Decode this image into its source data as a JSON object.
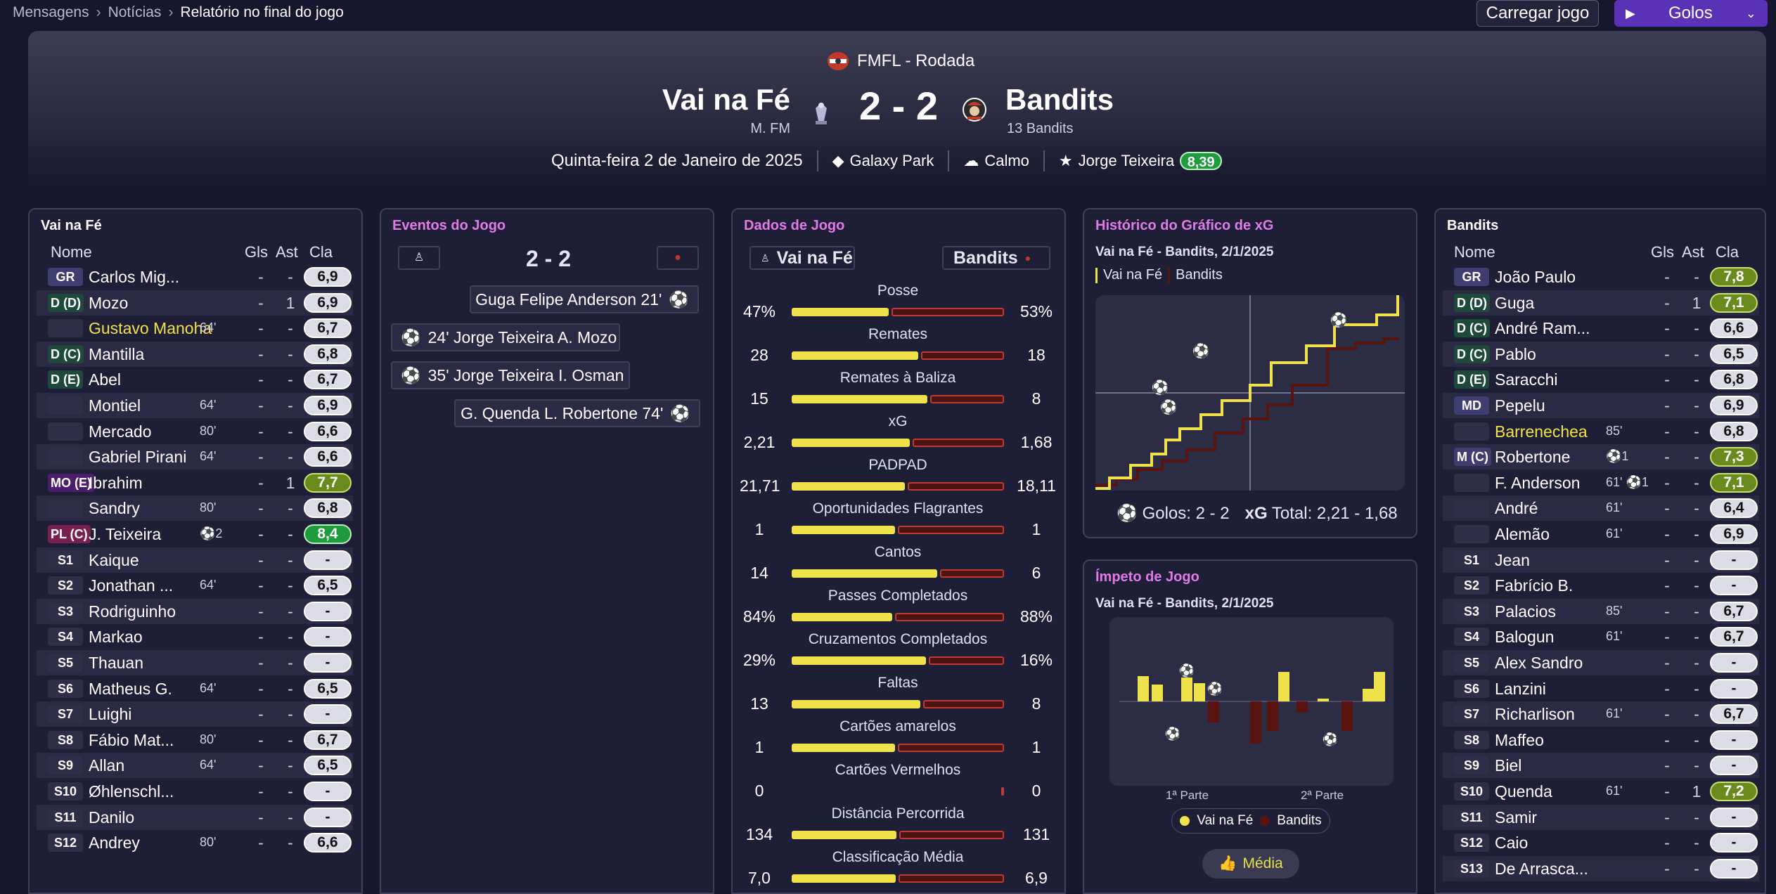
{
  "breadcrumb": [
    "Mensagens",
    "Notícias",
    "Relatório no final do jogo"
  ],
  "toolbar": {
    "load_label": "Carregar jogo",
    "goals_label": "Golos"
  },
  "match": {
    "competition": "FMFL - Rodada",
    "home_team": "Vai na Fé",
    "home_manager": "M. FM",
    "score": "2 - 2",
    "away_team": "Bandits",
    "away_manager": "13 Bandits",
    "date": "Quinta-feira 2 de Janeiro de 2025",
    "stadium": "Galaxy Park",
    "weather": "Calmo",
    "mom_name": "Jorge Teixeira",
    "mom_rating": "8,39"
  },
  "colors": {
    "home": "#f0e24a",
    "away": "#4a1412",
    "away_edge": "#c03a34",
    "accent": "#5a32b8",
    "pink": "#e07be8"
  },
  "home_panel": {
    "title": "Vai na Fé",
    "headers": {
      "name": "Nome",
      "goals": "Gls",
      "assists": "Ast",
      "rating": "Cla"
    },
    "players": [
      {
        "pos": "GR",
        "name": "Carlos Mig...",
        "sub": "",
        "g": "-",
        "a": "-",
        "r": "6,9",
        "rc": ""
      },
      {
        "pos": "D (D)",
        "name": "Mozo",
        "sub": "",
        "g": "-",
        "a": "1",
        "r": "6,9",
        "rc": ""
      },
      {
        "pos": "",
        "name": "Gustavo Manoha",
        "sub": "64'",
        "g": "-",
        "a": "-",
        "r": "6,7",
        "rc": "",
        "hi": true
      },
      {
        "pos": "D (C)",
        "name": "Mantilla",
        "sub": "",
        "g": "-",
        "a": "-",
        "r": "6,8",
        "rc": ""
      },
      {
        "pos": "D (E)",
        "name": "Abel",
        "sub": "",
        "g": "-",
        "a": "-",
        "r": "6,7",
        "rc": ""
      },
      {
        "pos": "",
        "name": "Montiel",
        "sub": "64'",
        "g": "-",
        "a": "-",
        "r": "6,9",
        "rc": ""
      },
      {
        "pos": "",
        "name": "Mercado",
        "sub": "80'",
        "g": "-",
        "a": "-",
        "r": "6,6",
        "rc": ""
      },
      {
        "pos": "",
        "name": "Gabriel Pirani",
        "sub": "64'",
        "g": "-",
        "a": "-",
        "r": "6,6",
        "rc": ""
      },
      {
        "pos": "MO (E)",
        "name": "Ibrahim",
        "sub": "",
        "g": "-",
        "a": "1",
        "r": "7,7",
        "rc": "g1"
      },
      {
        "pos": "",
        "name": "Sandry",
        "sub": "80'",
        "g": "-",
        "a": "-",
        "r": "6,8",
        "rc": ""
      },
      {
        "pos": "PL (C)",
        "name": "J. Teixeira",
        "sub": "⚽2",
        "g": "-",
        "a": "-",
        "r": "8,4",
        "rc": "g2"
      },
      {
        "pos": "S1",
        "name": "Kaique",
        "sub": "",
        "g": "-",
        "a": "-",
        "r": "-",
        "rc": ""
      },
      {
        "pos": "S2",
        "name": "Jonathan ...",
        "sub": "64'",
        "g": "-",
        "a": "-",
        "r": "6,5",
        "rc": ""
      },
      {
        "pos": "S3",
        "name": "Rodriguinho",
        "sub": "",
        "g": "-",
        "a": "-",
        "r": "-",
        "rc": ""
      },
      {
        "pos": "S4",
        "name": "Markao",
        "sub": "",
        "g": "-",
        "a": "-",
        "r": "-",
        "rc": ""
      },
      {
        "pos": "S5",
        "name": "Thauan",
        "sub": "",
        "g": "-",
        "a": "-",
        "r": "-",
        "rc": ""
      },
      {
        "pos": "S6",
        "name": "Matheus G.",
        "sub": "64'",
        "g": "-",
        "a": "-",
        "r": "6,5",
        "rc": ""
      },
      {
        "pos": "S7",
        "name": "Luighi",
        "sub": "",
        "g": "-",
        "a": "-",
        "r": "-",
        "rc": ""
      },
      {
        "pos": "S8",
        "name": "Fábio Mat...",
        "sub": "80'",
        "g": "-",
        "a": "-",
        "r": "6,7",
        "rc": ""
      },
      {
        "pos": "S9",
        "name": "Allan",
        "sub": "64'",
        "g": "-",
        "a": "-",
        "r": "6,5",
        "rc": ""
      },
      {
        "pos": "S10",
        "name": "Øhlenschl...",
        "sub": "",
        "g": "-",
        "a": "-",
        "r": "-",
        "rc": ""
      },
      {
        "pos": "S11",
        "name": "Danilo",
        "sub": "",
        "g": "-",
        "a": "-",
        "r": "-",
        "rc": ""
      },
      {
        "pos": "S12",
        "name": "Andrey",
        "sub": "80'",
        "g": "-",
        "a": "-",
        "r": "6,6",
        "rc": ""
      }
    ]
  },
  "events_panel": {
    "title": "Eventos do Jogo",
    "score": "2 - 2",
    "events": [
      {
        "text": "Guga Felipe Anderson 21'",
        "side": "away"
      },
      {
        "text": "24' Jorge Teixeira A. Mozo",
        "side": "home"
      },
      {
        "text": "35' Jorge Teixeira I. Osman",
        "side": "home"
      },
      {
        "text": "G. Quenda L. Robertone 74'",
        "side": "away"
      }
    ]
  },
  "stats_panel": {
    "title": "Dados de Jogo",
    "home": "Vai na Fé",
    "away": "Bandits",
    "stats": [
      {
        "label": "Posse",
        "h": "47%",
        "a": "53%",
        "hv": 47,
        "av": 53
      },
      {
        "label": "Remates",
        "h": "28",
        "a": "18",
        "hv": 28,
        "av": 18
      },
      {
        "label": "Remates à Baliza",
        "h": "15",
        "a": "8",
        "hv": 15,
        "av": 8
      },
      {
        "label": "xG",
        "h": "2,21",
        "a": "1,68",
        "hv": 2.21,
        "av": 1.68
      },
      {
        "label": "PADPAD",
        "h": "21,71",
        "a": "18,11",
        "hv": 21.71,
        "av": 18.11
      },
      {
        "label": "Oportunidades Flagrantes",
        "h": "1",
        "a": "1",
        "hv": 1,
        "av": 1
      },
      {
        "label": "Cantos",
        "h": "14",
        "a": "6",
        "hv": 14,
        "av": 6
      },
      {
        "label": "Passes Completados",
        "h": "84%",
        "a": "88%",
        "hv": 84,
        "av": 88
      },
      {
        "label": "Cruzamentos Completados",
        "h": "29%",
        "a": "16%",
        "hv": 29,
        "av": 16
      },
      {
        "label": "Faltas",
        "h": "13",
        "a": "8",
        "hv": 13,
        "av": 8
      },
      {
        "label": "Cartões amarelos",
        "h": "1",
        "a": "1",
        "hv": 1,
        "av": 1
      },
      {
        "label": "Cartões Vermelhos",
        "h": "0",
        "a": "0",
        "hv": 0,
        "av": 0
      },
      {
        "label": "Distância Percorrida",
        "h": "134",
        "a": "131",
        "hv": 134,
        "av": 131
      },
      {
        "label": "Classificação Média",
        "h": "7,0",
        "a": "6,9",
        "hv": 7.0,
        "av": 6.9
      }
    ]
  },
  "xg_panel": {
    "title": "Histórico do Gráfico de xG",
    "subtitle": "Vai na Fé - Bandits, 2/1/2025",
    "legend_home": "Vai na Fé",
    "legend_away": "Bandits",
    "goals_label": "Golos: 2 - 2",
    "xg_label": "xG",
    "xg_total": "Total: 2,21 - 1,68"
  },
  "momentum_panel": {
    "title": "Ímpeto de Jogo",
    "subtitle": "Vai na Fé - Bandits, 2/1/2025",
    "half1": "1ª Parte",
    "half2": "2ª Parte",
    "legend_home": "Vai na Fé",
    "legend_away": "Bandits",
    "button": "Média"
  },
  "away_panel": {
    "title": "Bandits",
    "headers": {
      "name": "Nome",
      "goals": "Gls",
      "assists": "Ast",
      "rating": "Cla"
    },
    "players": [
      {
        "pos": "GR",
        "name": "João Paulo",
        "sub": "",
        "g": "-",
        "a": "-",
        "r": "7,8",
        "rc": "g1"
      },
      {
        "pos": "D (D)",
        "name": "Guga",
        "sub": "",
        "g": "-",
        "a": "1",
        "r": "7,1",
        "rc": "g1"
      },
      {
        "pos": "D (C)",
        "name": "André Ram...",
        "sub": "",
        "g": "-",
        "a": "-",
        "r": "6,6",
        "rc": ""
      },
      {
        "pos": "D (C)",
        "name": "Pablo",
        "sub": "",
        "g": "-",
        "a": "-",
        "r": "6,5",
        "rc": ""
      },
      {
        "pos": "D (E)",
        "name": "Saracchi",
        "sub": "",
        "g": "-",
        "a": "-",
        "r": "6,8",
        "rc": ""
      },
      {
        "pos": "MD",
        "name": "Pepelu",
        "sub": "",
        "g": "-",
        "a": "-",
        "r": "6,9",
        "rc": ""
      },
      {
        "pos": "",
        "name": "Barrenechea",
        "sub": "85'",
        "g": "-",
        "a": "-",
        "r": "6,8",
        "rc": "",
        "hi": true
      },
      {
        "pos": "M (C)",
        "name": "Robertone",
        "sub": "⚽1",
        "g": "-",
        "a": "-",
        "r": "7,3",
        "rc": "g1"
      },
      {
        "pos": "",
        "name": "F. Anderson",
        "sub": "61' ⚽1",
        "g": "-",
        "a": "-",
        "r": "7,1",
        "rc": "g1"
      },
      {
        "pos": "",
        "name": "André",
        "sub": "61'",
        "g": "-",
        "a": "-",
        "r": "6,4",
        "rc": ""
      },
      {
        "pos": "",
        "name": "Alemão",
        "sub": "61'",
        "g": "-",
        "a": "-",
        "r": "6,9",
        "rc": ""
      },
      {
        "pos": "S1",
        "name": "Jean",
        "sub": "",
        "g": "-",
        "a": "-",
        "r": "-",
        "rc": ""
      },
      {
        "pos": "S2",
        "name": "Fabrício B.",
        "sub": "",
        "g": "-",
        "a": "-",
        "r": "-",
        "rc": ""
      },
      {
        "pos": "S3",
        "name": "Palacios",
        "sub": "85'",
        "g": "-",
        "a": "-",
        "r": "6,7",
        "rc": ""
      },
      {
        "pos": "S4",
        "name": "Balogun",
        "sub": "61'",
        "g": "-",
        "a": "-",
        "r": "6,7",
        "rc": ""
      },
      {
        "pos": "S5",
        "name": "Alex Sandro",
        "sub": "",
        "g": "-",
        "a": "-",
        "r": "-",
        "rc": ""
      },
      {
        "pos": "S6",
        "name": "Lanzini",
        "sub": "",
        "g": "-",
        "a": "-",
        "r": "-",
        "rc": ""
      },
      {
        "pos": "S7",
        "name": "Richarlison",
        "sub": "61'",
        "g": "-",
        "a": "-",
        "r": "6,7",
        "rc": ""
      },
      {
        "pos": "S8",
        "name": "Maffeo",
        "sub": "",
        "g": "-",
        "a": "-",
        "r": "-",
        "rc": ""
      },
      {
        "pos": "S9",
        "name": "Biel",
        "sub": "",
        "g": "-",
        "a": "-",
        "r": "-",
        "rc": ""
      },
      {
        "pos": "S10",
        "name": "Quenda",
        "sub": "61'",
        "g": "-",
        "a": "1",
        "r": "7,2",
        "rc": "g1"
      },
      {
        "pos": "S11",
        "name": "Samir",
        "sub": "",
        "g": "-",
        "a": "-",
        "r": "-",
        "rc": ""
      },
      {
        "pos": "S12",
        "name": "Caio",
        "sub": "",
        "g": "-",
        "a": "-",
        "r": "-",
        "rc": ""
      },
      {
        "pos": "S13",
        "name": "De Arrasca...",
        "sub": "",
        "g": "-",
        "a": "-",
        "r": "-",
        "rc": ""
      }
    ]
  }
}
